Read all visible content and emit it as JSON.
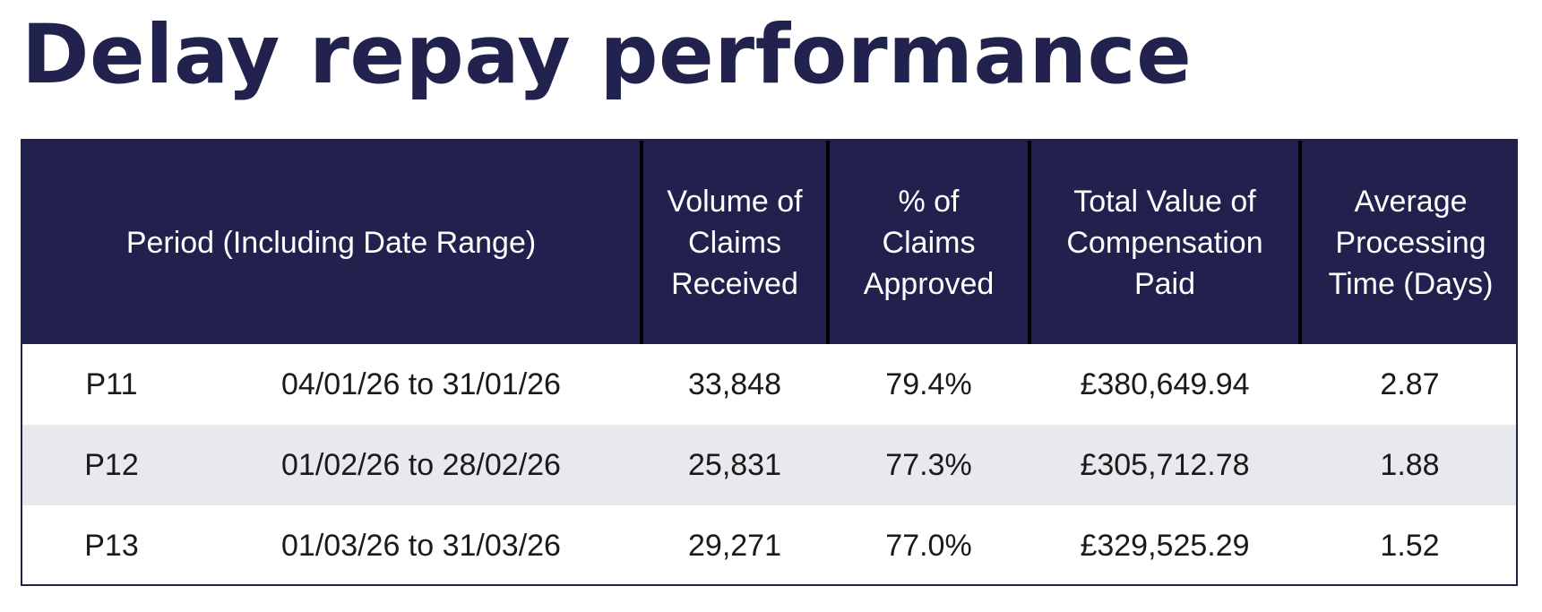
{
  "title": "Delay repay performance",
  "colors": {
    "header_background": "#22214e",
    "title_text": "#22224f",
    "shaded_row": "#e8e9ed"
  },
  "table": {
    "headers": {
      "period": "Period (Including Date Range)",
      "volume": "Volume of Claims Received",
      "approved": "% of Claims Approved",
      "total_value": "Total Value of Compensation Paid",
      "avg_time": "Average Processing Time (Days)"
    },
    "rows": [
      {
        "period": "P11",
        "date_range": "04/01/26 to 31/01/26",
        "volume": "33,848",
        "approved": "79.4%",
        "total_value": "£380,649.94",
        "avg_time": "2.87"
      },
      {
        "period": "P12",
        "date_range": "01/02/26 to 28/02/26",
        "volume": "25,831",
        "approved": "77.3%",
        "total_value": "£305,712.78",
        "avg_time": "1.88"
      },
      {
        "period": "P13",
        "date_range": "01/03/26 to 31/03/26",
        "volume": "29,271",
        "approved": "77.0%",
        "total_value": "£329,525.29",
        "avg_time": "1.52"
      }
    ]
  }
}
